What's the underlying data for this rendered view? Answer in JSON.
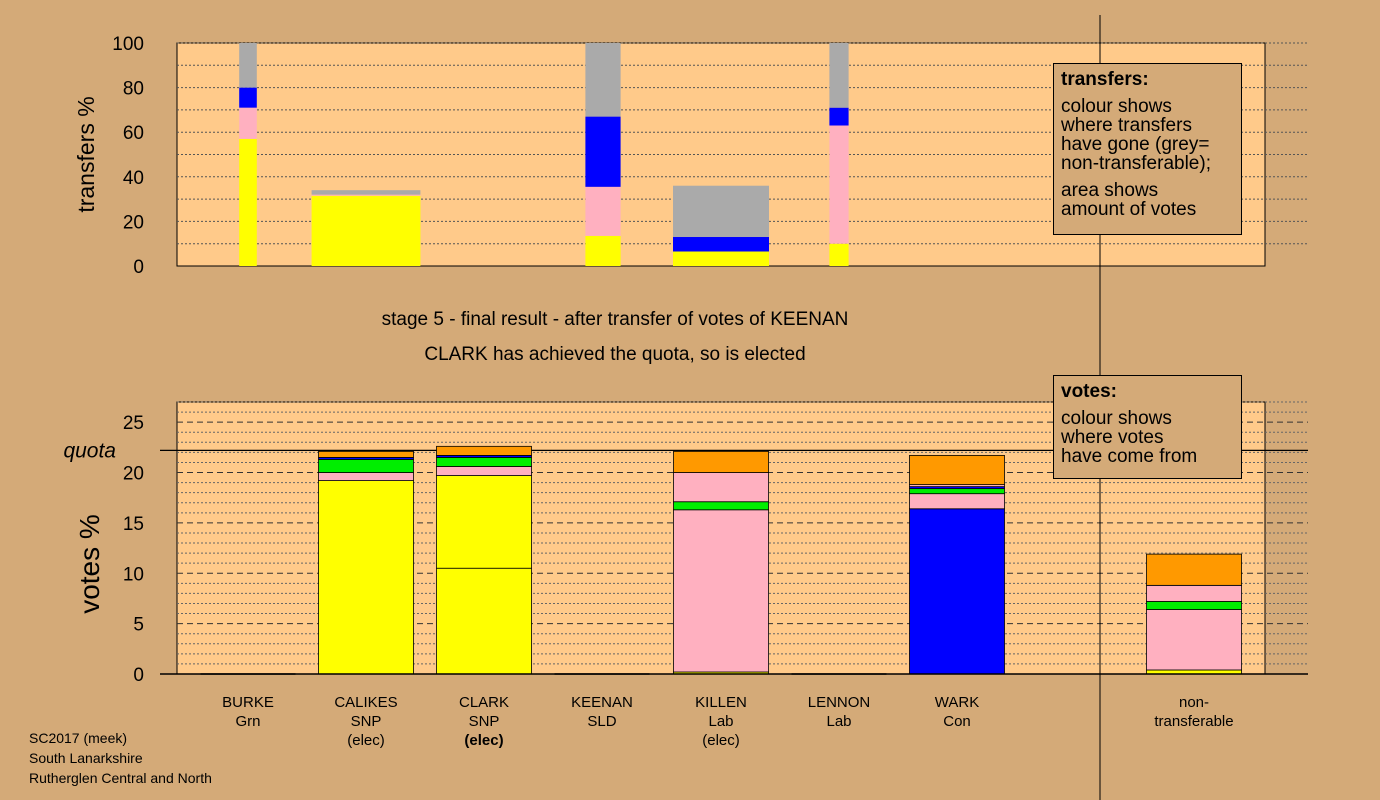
{
  "titles": {
    "stage": "stage 5 - final result - after transfer of votes of KEENAN",
    "elected": "CLARK has achieved the quota, so is elected"
  },
  "legend_transfers": {
    "title": "transfers:",
    "line1": "colour shows",
    "line2": "where transfers",
    "line3": "have gone (grey=",
    "line4": "non-transferable);",
    "line5": "area shows",
    "line6": "amount of votes"
  },
  "legend_votes": {
    "title": "votes:",
    "line1": "colour shows",
    "line2": "where votes",
    "line3": "have come from"
  },
  "candidates": [
    {
      "name": "BURKE",
      "party": "Grn",
      "status": ""
    },
    {
      "name": "CALIKES",
      "party": "SNP",
      "status": "(elec)"
    },
    {
      "name": "CLARK",
      "party": "SNP",
      "status": "(elec)"
    },
    {
      "name": "KEENAN",
      "party": "SLD",
      "status": ""
    },
    {
      "name": "KILLEN",
      "party": "Lab",
      "status": "(elec)"
    },
    {
      "name": "LENNON",
      "party": "Lab",
      "status": ""
    },
    {
      "name": "WARK",
      "party": "Con",
      "status": ""
    }
  ],
  "nontransferable_label": {
    "line1": "non-",
    "line2": "transferable"
  },
  "footer": {
    "line1": "SC2017 (meek)",
    "line2": "South Lanarkshire",
    "line3": "Rutherglen Central and North"
  },
  "colors": {
    "background": "#d4aa78",
    "plot_bg": "#ffca8a",
    "snp": "#ffff00",
    "lab": "#ffb0c0",
    "grn": "#00ee00",
    "con": "#0000ff",
    "sld": "#ff9900",
    "nontransferable": "#aaaaaa"
  },
  "chart_data": [
    {
      "type": "bar",
      "ylabel": "transfers %",
      "ylim": [
        0,
        100
      ],
      "yticks": [
        0,
        20,
        40,
        60,
        80,
        100
      ],
      "categories": [
        "BURKE",
        "CALIKES",
        "KEENAN",
        "KILLEN",
        "LENNON"
      ],
      "stacks": [
        {
          "category": "BURKE",
          "width_share": 0.55,
          "segments": [
            {
              "color": "snp",
              "value": 57
            },
            {
              "color": "lab",
              "value": 14
            },
            {
              "color": "con",
              "value": 9
            },
            {
              "color": "nontransferable",
              "value": 20
            }
          ]
        },
        {
          "category": "CALIKES",
          "width_share": 3.4,
          "segments": [
            {
              "color": "snp",
              "value": 31.5
            },
            {
              "color": "lab",
              "value": 0.5
            },
            {
              "color": "nontransferable",
              "value": 2
            }
          ]
        },
        {
          "category": "KEENAN",
          "width_share": 1.1,
          "segments": [
            {
              "color": "snp",
              "value": 13.5
            },
            {
              "color": "lab",
              "value": 22
            },
            {
              "color": "con",
              "value": 31.5
            },
            {
              "color": "nontransferable",
              "value": 33
            }
          ]
        },
        {
          "category": "KILLEN",
          "width_share": 3.0,
          "segments": [
            {
              "color": "snp",
              "value": 6.5
            },
            {
              "color": "con",
              "value": 6.5
            },
            {
              "color": "nontransferable",
              "value": 23
            }
          ]
        },
        {
          "category": "LENNON",
          "width_share": 0.6,
          "segments": [
            {
              "color": "snp",
              "value": 10
            },
            {
              "color": "lab",
              "value": 53
            },
            {
              "color": "con",
              "value": 8
            },
            {
              "color": "nontransferable",
              "value": 29
            }
          ]
        }
      ]
    },
    {
      "type": "bar",
      "ylabel": "votes %",
      "ylim": [
        0,
        27
      ],
      "yticks": [
        0,
        5,
        10,
        15,
        20,
        25
      ],
      "quota": 22.2,
      "quota_label": "quota",
      "categories": [
        "BURKE",
        "CALIKES",
        "CLARK",
        "KEENAN",
        "KILLEN",
        "LENNON",
        "WARK",
        "non-transferable"
      ],
      "stacks": [
        {
          "category": "BURKE",
          "segments": []
        },
        {
          "category": "CALIKES",
          "segments": [
            {
              "color": "snp",
              "value": 19.2
            },
            {
              "color": "lab",
              "value": 0.8
            },
            {
              "color": "grn",
              "value": 1.3
            },
            {
              "color": "con",
              "value": 0.2
            },
            {
              "color": "sld",
              "value": 0.6
            }
          ]
        },
        {
          "category": "CLARK",
          "segments": [
            {
              "color": "snp",
              "value": 10.5
            },
            {
              "color": "snp",
              "value": 9.2
            },
            {
              "color": "lab",
              "value": 0.9
            },
            {
              "color": "grn",
              "value": 0.9
            },
            {
              "color": "con",
              "value": 0.2
            },
            {
              "color": "sld",
              "value": 0.9
            }
          ]
        },
        {
          "category": "KEENAN",
          "segments": []
        },
        {
          "category": "KILLEN",
          "segments": [
            {
              "color": "snp",
              "value": 0.2
            },
            {
              "color": "lab",
              "value": 16.1
            },
            {
              "color": "grn",
              "value": 0.8
            },
            {
              "color": "lab",
              "value": 2.9
            },
            {
              "color": "sld",
              "value": 2.1
            }
          ]
        },
        {
          "category": "LENNON",
          "segments": []
        },
        {
          "category": "WARK",
          "segments": [
            {
              "color": "con",
              "value": 16.4
            },
            {
              "color": "lab",
              "value": 1.5
            },
            {
              "color": "grn",
              "value": 0.5
            },
            {
              "color": "con",
              "value": 0.2
            },
            {
              "color": "lab",
              "value": 0.2
            },
            {
              "color": "sld",
              "value": 2.9
            }
          ]
        },
        {
          "category": "non-transferable",
          "segments": [
            {
              "color": "snp",
              "value": 0.4
            },
            {
              "color": "lab",
              "value": 6.0
            },
            {
              "color": "grn",
              "value": 0.8
            },
            {
              "color": "lab",
              "value": 1.6
            },
            {
              "color": "sld",
              "value": 3.1
            }
          ]
        }
      ]
    }
  ]
}
